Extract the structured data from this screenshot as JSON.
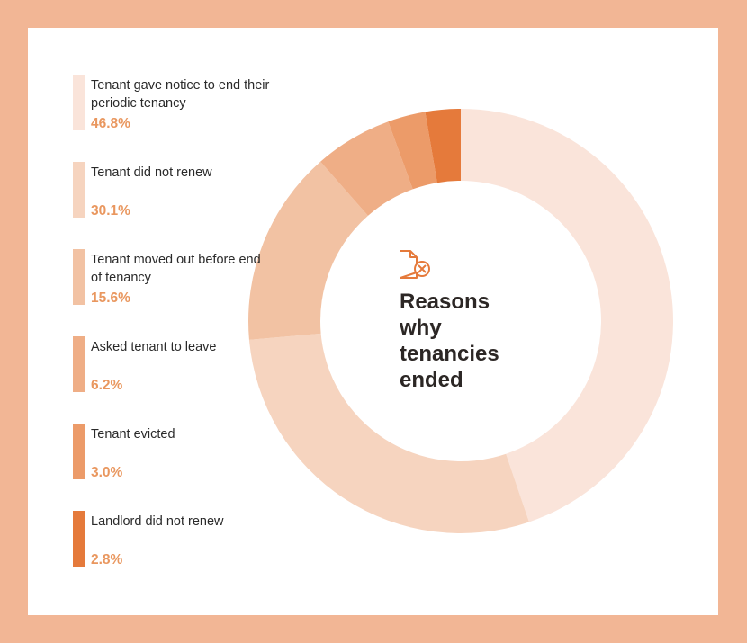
{
  "title": "Reasons\nwhy\ntenancies\nended",
  "icon": "document-cancel-icon",
  "colors": {
    "frame": "#f2b695",
    "value_text": "#e9975f",
    "icon": "#e57a3b"
  },
  "chart_data": {
    "type": "pie",
    "style": "donut",
    "legend_placement": "left",
    "slices": [
      {
        "label": "Tenant gave notice to end their periodic tenancy",
        "value": 46.8,
        "value_label": "46.8%",
        "color": "#fae4da"
      },
      {
        "label": "Tenant did not renew",
        "value": 30.1,
        "value_label": "30.1%",
        "color": "#f6d4bf"
      },
      {
        "label": "Tenant moved out before end of tenancy",
        "value": 15.6,
        "value_label": "15.6%",
        "color": "#f2c2a3"
      },
      {
        "label": "Asked tenant to leave",
        "value": 6.2,
        "value_label": "6.2%",
        "color": "#efae86"
      },
      {
        "label": "Tenant evicted",
        "value": 3.0,
        "value_label": "3.0%",
        "color": "#ec9b69"
      },
      {
        "label": "Landlord did not renew",
        "value": 2.8,
        "value_label": "2.8%",
        "color": "#e57a3b"
      }
    ]
  }
}
